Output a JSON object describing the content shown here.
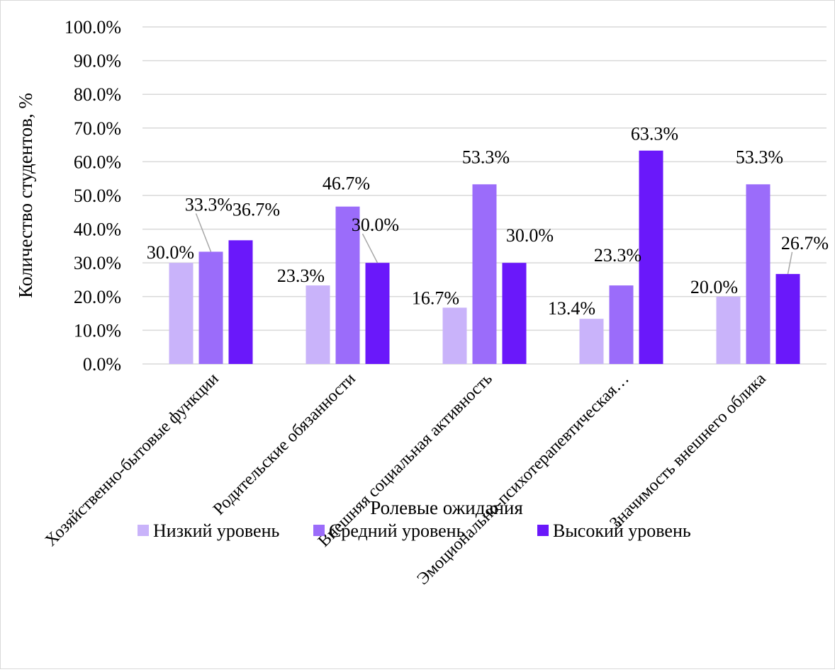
{
  "chart_data": {
    "type": "bar",
    "title": "",
    "xlabel": "Ролевые ожидания",
    "ylabel": "Количество студентов, %",
    "ylim": [
      0,
      100
    ],
    "yticks": [
      "0.0%",
      "10.0%",
      "20.0%",
      "30.0%",
      "40.0%",
      "50.0%",
      "60.0%",
      "70.0%",
      "80.0%",
      "90.0%",
      "100.0%"
    ],
    "grid": true,
    "legend_position": "bottom",
    "categories": [
      "Хозяйственно-бытовые функции",
      "Родительские обязанности",
      "Внешняя социальная активность",
      "Эмоционально-психотерапевтическая…",
      "Значимость внешнего облика"
    ],
    "series": [
      {
        "name": "Низкий уровень",
        "color": "#c9b3fa",
        "values": [
          30.0,
          23.3,
          16.7,
          13.4,
          20.0
        ],
        "labels": [
          "30.0%",
          "23.3%",
          "16.7%",
          "13.4%",
          "20.0%"
        ]
      },
      {
        "name": "Средний уровень",
        "color": "#9b6cfa",
        "values": [
          33.3,
          46.7,
          53.3,
          23.3,
          53.3
        ],
        "labels": [
          "33.3%",
          "46.7%",
          "53.3%",
          "23.3%",
          "53.3%"
        ]
      },
      {
        "name": "Высокий уровень",
        "color": "#6a18fa",
        "values": [
          36.7,
          30.0,
          30.0,
          63.3,
          26.7
        ],
        "labels": [
          "36.7%",
          "30.0%",
          "30.0%",
          "63.3%",
          "26.7%"
        ]
      }
    ]
  }
}
